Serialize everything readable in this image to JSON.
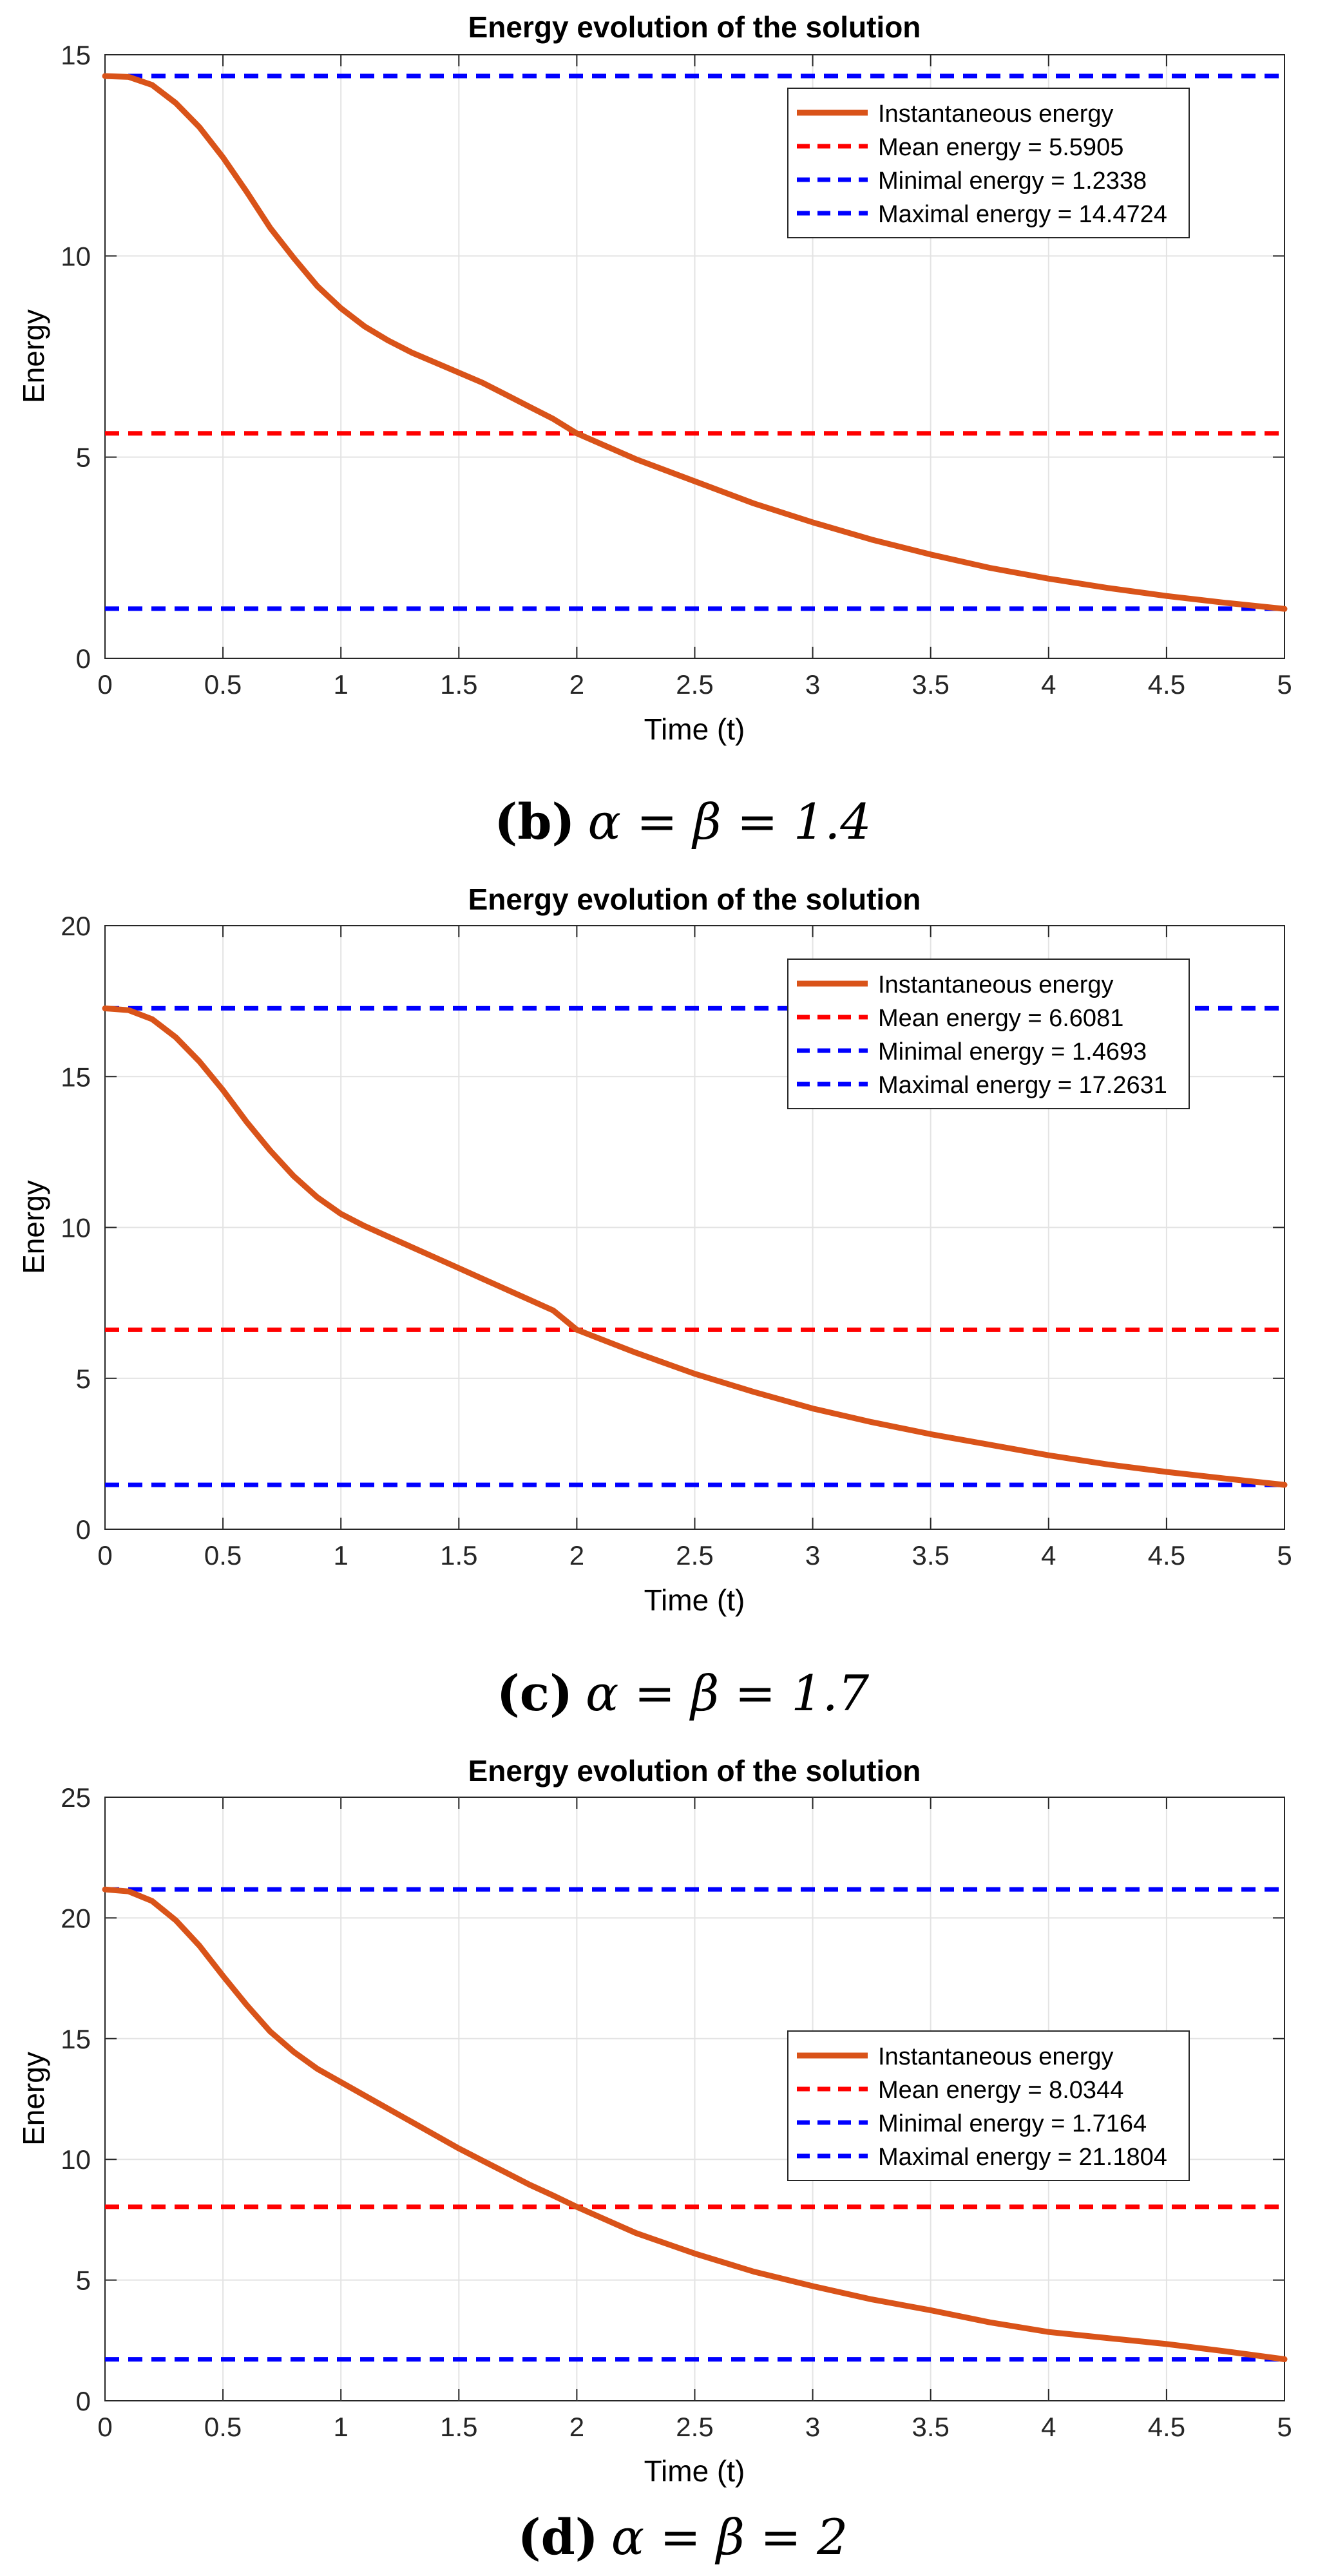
{
  "chart_data": [
    {
      "type": "line",
      "title": "Energy evolution of the solution",
      "xlabel": "Time (t)",
      "ylabel": "Energy",
      "xlim": [
        0,
        5
      ],
      "ylim": [
        0,
        15
      ],
      "xticks": [
        0,
        0.5,
        1,
        1.5,
        2,
        2.5,
        3,
        3.5,
        4,
        4.5,
        5
      ],
      "xtick_labels": [
        "0",
        "0.5",
        "1",
        "1.5",
        "2",
        "2.5",
        "3",
        "3.5",
        "4",
        "4.5",
        "5"
      ],
      "yticks": [
        0,
        5,
        10,
        15
      ],
      "ytick_labels": [
        "0",
        "5",
        "10",
        "15"
      ],
      "grid": true,
      "legend_position": "top-right",
      "series": [
        {
          "name": "Instantaneous energy",
          "color": "#d95319",
          "style": "solid",
          "x": [
            0,
            0.1,
            0.2,
            0.3,
            0.4,
            0.5,
            0.6,
            0.7,
            0.8,
            0.9,
            1.0,
            1.1,
            1.2,
            1.3,
            1.4,
            1.5,
            1.6,
            1.7,
            1.8,
            1.9,
            2.0,
            2.25,
            2.5,
            2.75,
            3.0,
            3.25,
            3.5,
            3.75,
            4.0,
            4.25,
            4.5,
            4.75,
            5.0
          ],
          "y": [
            14.47,
            14.45,
            14.25,
            13.8,
            13.2,
            12.45,
            11.6,
            10.7,
            9.95,
            9.25,
            8.7,
            8.25,
            7.9,
            7.6,
            7.35,
            7.1,
            6.85,
            6.55,
            6.25,
            5.95,
            5.59,
            4.95,
            4.4,
            3.85,
            3.38,
            2.95,
            2.58,
            2.25,
            1.98,
            1.75,
            1.55,
            1.38,
            1.23
          ]
        },
        {
          "name": "Mean energy = 5.5905",
          "color": "#ff0000",
          "style": "dashed",
          "constant": 5.5905
        },
        {
          "name": "Minimal energy = 1.2338",
          "color": "#0000ff",
          "style": "dashed",
          "constant": 1.2338
        },
        {
          "name": "Maximal energy = 14.4724",
          "color": "#0000ff",
          "style": "dashed",
          "constant": 14.4724
        }
      ]
    },
    {
      "type": "line",
      "title": "Energy evolution of the solution",
      "xlabel": "Time (t)",
      "ylabel": "Energy",
      "xlim": [
        0,
        5
      ],
      "ylim": [
        0,
        20
      ],
      "xticks": [
        0,
        0.5,
        1,
        1.5,
        2,
        2.5,
        3,
        3.5,
        4,
        4.5,
        5
      ],
      "xtick_labels": [
        "0",
        "0.5",
        "1",
        "1.5",
        "2",
        "2.5",
        "3",
        "3.5",
        "4",
        "4.5",
        "5"
      ],
      "yticks": [
        0,
        5,
        10,
        15,
        20
      ],
      "ytick_labels": [
        "0",
        "5",
        "10",
        "15",
        "20"
      ],
      "grid": true,
      "legend_position": "top-right",
      "series": [
        {
          "name": "Instantaneous energy",
          "color": "#d95319",
          "style": "solid",
          "x": [
            0,
            0.1,
            0.2,
            0.3,
            0.4,
            0.5,
            0.6,
            0.7,
            0.8,
            0.9,
            1.0,
            1.1,
            1.2,
            1.3,
            1.4,
            1.5,
            1.6,
            1.7,
            1.8,
            1.9,
            2.0,
            2.25,
            2.5,
            2.75,
            3.0,
            3.25,
            3.5,
            3.75,
            4.0,
            4.25,
            4.5,
            4.75,
            5.0
          ],
          "y": [
            17.26,
            17.2,
            16.9,
            16.3,
            15.5,
            14.55,
            13.5,
            12.55,
            11.7,
            11.0,
            10.45,
            10.05,
            9.7,
            9.35,
            9.0,
            8.65,
            8.3,
            7.95,
            7.6,
            7.25,
            6.61,
            5.85,
            5.15,
            4.55,
            4.0,
            3.55,
            3.15,
            2.8,
            2.45,
            2.15,
            1.9,
            1.68,
            1.47
          ]
        },
        {
          "name": "Mean energy = 6.6081",
          "color": "#ff0000",
          "style": "dashed",
          "constant": 6.6081
        },
        {
          "name": "Minimal energy = 1.4693",
          "color": "#0000ff",
          "style": "dashed",
          "constant": 1.4693
        },
        {
          "name": "Maximal energy = 17.2631",
          "color": "#0000ff",
          "style": "dashed",
          "constant": 17.2631
        }
      ]
    },
    {
      "type": "line",
      "title": "Energy evolution of the solution",
      "xlabel": "Time (t)",
      "ylabel": "Energy",
      "xlim": [
        0,
        5
      ],
      "ylim": [
        0,
        25
      ],
      "xticks": [
        0,
        0.5,
        1,
        1.5,
        2,
        2.5,
        3,
        3.5,
        4,
        4.5,
        5
      ],
      "xtick_labels": [
        "0",
        "0.5",
        "1",
        "1.5",
        "2",
        "2.5",
        "3",
        "3.5",
        "4",
        "4.5",
        "5"
      ],
      "yticks": [
        0,
        5,
        10,
        15,
        20,
        25
      ],
      "ytick_labels": [
        "0",
        "5",
        "10",
        "15",
        "20",
        "25"
      ],
      "grid": true,
      "legend_position": "center-right",
      "series": [
        {
          "name": "Instantaneous energy",
          "color": "#d95319",
          "style": "solid",
          "x": [
            0,
            0.1,
            0.2,
            0.3,
            0.4,
            0.5,
            0.6,
            0.7,
            0.8,
            0.9,
            1.0,
            1.1,
            1.2,
            1.3,
            1.4,
            1.5,
            1.6,
            1.7,
            1.8,
            1.9,
            2.0,
            2.25,
            2.5,
            2.75,
            3.0,
            3.25,
            3.5,
            3.75,
            4.0,
            4.25,
            4.5,
            4.75,
            5.0
          ],
          "y": [
            21.18,
            21.1,
            20.7,
            19.9,
            18.85,
            17.6,
            16.4,
            15.3,
            14.45,
            13.75,
            13.2,
            12.65,
            12.1,
            11.55,
            11.0,
            10.45,
            9.95,
            9.45,
            8.95,
            8.5,
            8.03,
            6.95,
            6.1,
            5.35,
            4.75,
            4.2,
            3.75,
            3.25,
            2.85,
            2.6,
            2.35,
            2.05,
            1.72
          ]
        },
        {
          "name": "Mean energy = 8.0344",
          "color": "#ff0000",
          "style": "dashed",
          "constant": 8.0344
        },
        {
          "name": "Minimal energy = 1.7164",
          "color": "#0000ff",
          "style": "dashed",
          "constant": 1.7164
        },
        {
          "name": "Maximal energy = 21.1804",
          "color": "#0000ff",
          "style": "dashed",
          "constant": 21.1804
        }
      ]
    }
  ],
  "captions": [
    {
      "label": "(b)",
      "text": "α = β = 1.4"
    },
    {
      "label": "(c)",
      "text": "α = β = 1.7"
    },
    {
      "label": "(d)",
      "text": "α = β = 2"
    }
  ]
}
